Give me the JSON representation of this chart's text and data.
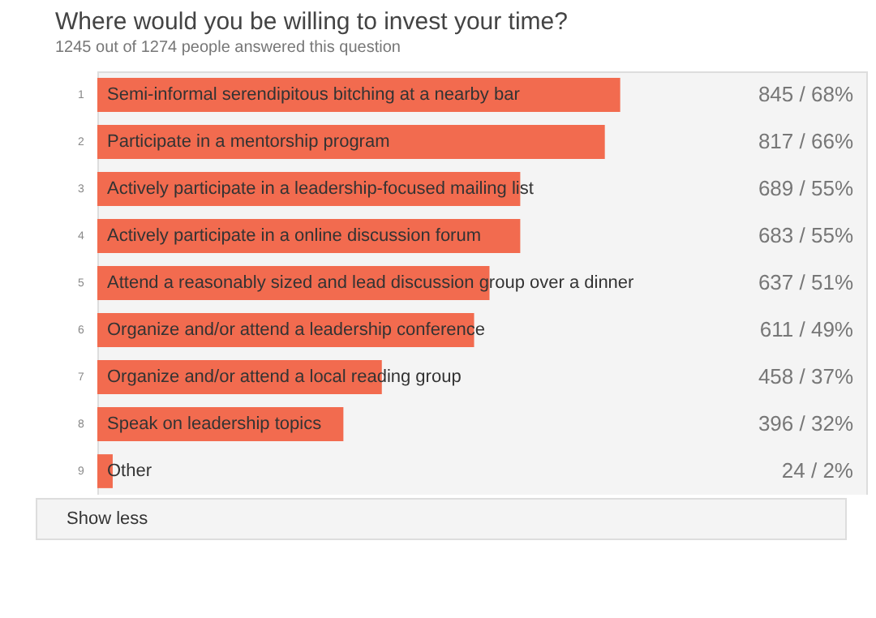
{
  "chart_data": {
    "type": "bar",
    "orientation": "horizontal",
    "title": "Where would you be willing to invest your time?",
    "subtitle": "1245 out of 1274 people answered this question",
    "categories": [
      "Semi-informal serendipitous bitching at a nearby bar",
      "Participate in a mentorship program",
      "Actively participate in a leadership-focused mailing list",
      "Actively participate in a online discussion forum",
      "Attend a reasonably sized and lead discussion group over a dinner",
      "Organize and/or attend a leadership conference",
      "Organize and/or attend a local reading group",
      "Speak on leadership topics",
      "Other"
    ],
    "values": [
      68,
      66,
      55,
      55,
      51,
      49,
      37,
      32,
      2
    ],
    "value_labels": [
      "845 / 68%",
      "817 / 66%",
      "689 / 55%",
      "683 / 55%",
      "637 / 51%",
      "611 / 49%",
      "458 / 37%",
      "396 / 32%",
      "24 / 2%"
    ],
    "color": "#f26b4f",
    "xlim": [
      0,
      100
    ],
    "tick_labels": false,
    "annotations": [
      "1",
      "2",
      "3",
      "4",
      "5",
      "6",
      "7",
      "8",
      "9",
      "Show less"
    ]
  }
}
